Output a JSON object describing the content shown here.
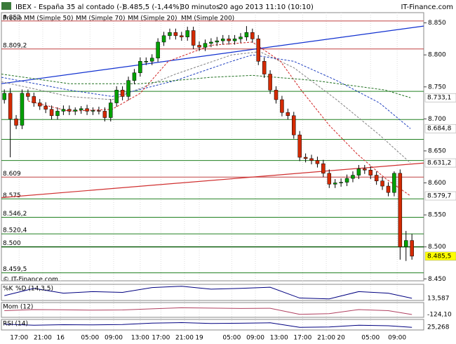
{
  "chart_data": {
    "type": "candlestick",
    "title": "IBEX - España 35 al contado (-)",
    "price_label": "8.485,5 (-1,44%)",
    "interval": "30 minutos",
    "date": "20 ago 2013 11:10 (10:10)",
    "brand": "IT-Finance.com",
    "footer": "© IT-Finance.com",
    "price_name": "Precio",
    "xlim": [
      0,
      143
    ],
    "ylim": [
      8.447,
      8.866
    ],
    "xticks": [
      {
        "value": 6,
        "label": "17:00"
      },
      {
        "value": 14,
        "label": "21:00"
      },
      {
        "value": 20,
        "label": "16"
      },
      {
        "value": 30,
        "label": "05:00"
      },
      {
        "value": 38,
        "label": "09:00"
      },
      {
        "value": 47,
        "label": "13:00"
      },
      {
        "value": 54,
        "label": "17:00"
      },
      {
        "value": 62,
        "label": "21:00"
      },
      {
        "value": 67,
        "label": "19"
      },
      {
        "value": 78,
        "label": "05:00"
      },
      {
        "value": 86,
        "label": "09:00"
      },
      {
        "value": 94,
        "label": "13:00"
      },
      {
        "value": 102,
        "label": "17:00"
      },
      {
        "value": 110,
        "label": "21:00"
      },
      {
        "value": 115,
        "label": "20"
      },
      {
        "value": 125,
        "label": "05:00"
      },
      {
        "value": 134,
        "label": "09:00"
      }
    ],
    "yticks": [
      {
        "value": 8.85,
        "label": "8.850"
      },
      {
        "value": 8.8,
        "label": "8.800"
      },
      {
        "value": 8.75,
        "label": "8.750"
      },
      {
        "value": 8.7,
        "label": "8.700"
      },
      {
        "value": 8.65,
        "label": "8.650"
      },
      {
        "value": 8.6,
        "label": "8.600"
      },
      {
        "value": 8.55,
        "label": "8.550"
      },
      {
        "value": 8.5,
        "label": "8.500"
      },
      {
        "value": 8.45,
        "label": "8.450"
      }
    ],
    "candles": {
      "up_color": "#00a000",
      "down_color": "#d42a00",
      "x": [
        1,
        3,
        5,
        7,
        9,
        11,
        13,
        15,
        17,
        19,
        21,
        23,
        25,
        27,
        29,
        31,
        33,
        35,
        37,
        39,
        41,
        43,
        45,
        47,
        49,
        51,
        53,
        55,
        57,
        59,
        61,
        63,
        65,
        67,
        69,
        71,
        73,
        75,
        77,
        79,
        81,
        83,
        85,
        87,
        89,
        91,
        93,
        95,
        97,
        99,
        101,
        103,
        105,
        107,
        109,
        111,
        113,
        115,
        117,
        119,
        121,
        123,
        125,
        127,
        129,
        131,
        133,
        135,
        137,
        139
      ],
      "open": [
        8.73,
        8.74,
        8.7,
        8.69,
        8.74,
        8.735,
        8.725,
        8.72,
        8.715,
        8.705,
        8.712,
        8.715,
        8.712,
        8.714,
        8.716,
        8.712,
        8.713,
        8.712,
        8.702,
        8.725,
        8.745,
        8.735,
        8.76,
        8.772,
        8.79,
        8.79,
        8.795,
        8.82,
        8.83,
        8.835,
        8.83,
        8.828,
        8.838,
        8.815,
        8.812,
        8.818,
        8.82,
        8.822,
        8.825,
        8.822,
        8.825,
        8.828,
        8.835,
        8.825,
        8.79,
        8.77,
        8.745,
        8.73,
        8.71,
        8.705,
        8.675,
        8.64,
        8.638,
        8.635,
        8.63,
        8.615,
        8.598,
        8.6,
        8.601,
        8.607,
        8.612,
        8.622,
        8.62,
        8.612,
        8.603,
        8.595,
        8.585,
        8.615,
        8.5,
        8.51
      ],
      "high": [
        8.746,
        8.748,
        8.706,
        8.746,
        8.746,
        8.741,
        8.731,
        8.726,
        8.721,
        8.718,
        8.721,
        8.721,
        8.718,
        8.72,
        8.722,
        8.718,
        8.719,
        8.718,
        8.731,
        8.751,
        8.751,
        8.766,
        8.778,
        8.796,
        8.796,
        8.801,
        8.826,
        8.836,
        8.841,
        8.841,
        8.836,
        8.844,
        8.844,
        8.821,
        8.824,
        8.826,
        8.828,
        8.831,
        8.831,
        8.831,
        8.834,
        8.845,
        8.841,
        8.831,
        8.796,
        8.776,
        8.751,
        8.736,
        8.716,
        8.711,
        8.681,
        8.646,
        8.644,
        8.641,
        8.636,
        8.621,
        8.606,
        8.607,
        8.613,
        8.618,
        8.628,
        8.628,
        8.626,
        8.618,
        8.609,
        8.601,
        8.618,
        8.621,
        8.525,
        8.52
      ],
      "low": [
        8.724,
        8.64,
        8.684,
        8.684,
        8.729,
        8.719,
        8.714,
        8.709,
        8.699,
        8.699,
        8.706,
        8.706,
        8.706,
        8.708,
        8.706,
        8.706,
        8.707,
        8.696,
        8.696,
        8.719,
        8.729,
        8.729,
        8.754,
        8.766,
        8.784,
        8.784,
        8.789,
        8.814,
        8.824,
        8.824,
        8.822,
        8.822,
        8.809,
        8.806,
        8.806,
        8.812,
        8.814,
        8.816,
        8.816,
        8.816,
        8.819,
        8.822,
        8.819,
        8.784,
        8.764,
        8.739,
        8.724,
        8.704,
        8.699,
        8.669,
        8.634,
        8.632,
        8.629,
        8.624,
        8.609,
        8.592,
        8.592,
        8.594,
        8.595,
        8.601,
        8.606,
        8.614,
        8.606,
        8.597,
        8.589,
        8.579,
        8.579,
        8.48,
        8.478,
        8.48
      ],
      "close": [
        8.74,
        8.7,
        8.69,
        8.74,
        8.735,
        8.725,
        8.72,
        8.715,
        8.705,
        8.712,
        8.715,
        8.712,
        8.714,
        8.716,
        8.712,
        8.713,
        8.712,
        8.702,
        8.725,
        8.745,
        8.735,
        8.76,
        8.772,
        8.79,
        8.79,
        8.795,
        8.82,
        8.83,
        8.835,
        8.83,
        8.828,
        8.838,
        8.815,
        8.812,
        8.818,
        8.82,
        8.822,
        8.825,
        8.822,
        8.825,
        8.828,
        8.835,
        8.825,
        8.79,
        8.77,
        8.745,
        8.73,
        8.71,
        8.705,
        8.675,
        8.64,
        8.638,
        8.635,
        8.63,
        8.615,
        8.598,
        8.6,
        8.601,
        8.607,
        8.612,
        8.622,
        8.62,
        8.612,
        8.603,
        8.595,
        8.585,
        8.615,
        8.5,
        8.51,
        8.4855
      ],
      "last_label": "8.485,5",
      "last_color": "#ffff00"
    },
    "series": [
      {
        "name": "MM (Simple 50)",
        "color": "#808080",
        "x": [
          0,
          23,
          37.5,
          59,
          78,
          87.5,
          99,
          113.5,
          128,
          138.5
        ],
        "values": [
          8.758,
          8.735,
          8.73,
          8.77,
          8.8,
          8.805,
          8.78,
          8.73,
          8.675,
          8.6312
        ],
        "value_labels": [
          null,
          null,
          null,
          null,
          null,
          null,
          null,
          null,
          null,
          "8.631,2"
        ]
      },
      {
        "name": "MM (Simple 70)",
        "color": "#2040c0",
        "x": [
          0,
          23,
          37.5,
          59,
          78,
          85,
          99,
          113.5,
          128,
          138.5
        ],
        "values": [
          8.765,
          8.745,
          8.735,
          8.76,
          8.79,
          8.8,
          8.79,
          8.76,
          8.725,
          8.6848
        ],
        "value_labels": [
          null,
          null,
          null,
          null,
          null,
          null,
          null,
          null,
          null,
          "8.684,8"
        ]
      },
      {
        "name": "MM (Simple 20)",
        "color": "#d02020",
        "x": [
          9,
          23,
          37.5,
          47,
          56.5,
          71,
          85,
          94.5,
          101.5,
          111,
          120.5,
          130,
          138.5
        ],
        "values": [
          8.728,
          8.712,
          8.715,
          8.74,
          8.79,
          8.815,
          8.82,
          8.79,
          8.745,
          8.69,
          8.645,
          8.607,
          8.5797
        ],
        "value_labels": [
          null,
          null,
          null,
          null,
          null,
          null,
          null,
          null,
          null,
          null,
          null,
          null,
          "8.579,7"
        ]
      },
      {
        "name": "MM (Simple 200)",
        "color": "#207020",
        "x": [
          0,
          23,
          47,
          71,
          85,
          106,
          130,
          138.5
        ],
        "values": [
          8.77,
          8.755,
          8.755,
          8.765,
          8.768,
          8.76,
          8.745,
          8.7331
        ],
        "value_labels": [
          null,
          null,
          null,
          null,
          null,
          null,
          null,
          "8.733,1"
        ]
      }
    ],
    "trendlines": [
      {
        "color": "#1030d0",
        "x": [
          0,
          143
        ],
        "values": [
          8.755,
          8.845
        ]
      },
      {
        "color": "#d03030",
        "x": [
          0,
          143
        ],
        "values": [
          8.577,
          8.631
        ]
      }
    ],
    "levels": [
      {
        "value": 8.853,
        "label": "8.853",
        "color": "#c04040"
      },
      {
        "value": 8.8092,
        "label": "8.809,2",
        "color": "#c04040"
      },
      {
        "value": 8.743,
        "color": "#208020"
      },
      {
        "value": 8.699,
        "color": "#208020"
      },
      {
        "value": 8.668,
        "color": "#208020"
      },
      {
        "value": 8.635,
        "color": "#208020"
      },
      {
        "value": 8.609,
        "label": "8.609",
        "color": "#c04040"
      },
      {
        "value": 8.575,
        "label": "8.575",
        "color": "#208020"
      },
      {
        "value": 8.5462,
        "label": "8.546,2",
        "color": "#208020"
      },
      {
        "value": 8.5204,
        "label": "8.520,4",
        "color": "#208020"
      },
      {
        "value": 8.5,
        "label": "8.500",
        "color": "#106010"
      },
      {
        "value": 8.4595,
        "label": "8.459,5",
        "color": "#208020"
      }
    ],
    "indicators": [
      {
        "name": "%K",
        "subname": "%D (14,3,5)",
        "color": "#000080",
        "ylim": [
          0,
          100
        ],
        "x": [
          1,
          11,
          21,
          31,
          41,
          51,
          61,
          71,
          81,
          91,
          101,
          111,
          121,
          131,
          139
        ],
        "values": [
          30,
          75,
          45,
          55,
          50,
          80,
          88,
          70,
          75,
          82,
          15,
          10,
          55,
          45,
          13.587
        ],
        "value_labels": [
          null,
          null,
          null,
          null,
          null,
          null,
          null,
          null,
          null,
          null,
          null,
          null,
          null,
          null,
          "13,587"
        ]
      },
      {
        "name": "Mom (12)",
        "color": "#b04060",
        "ylim": [
          -200,
          200
        ],
        "x": [
          1,
          11,
          21,
          31,
          41,
          51,
          61,
          71,
          81,
          91,
          101,
          111,
          121,
          131,
          139
        ],
        "values": [
          -20,
          10,
          5,
          -5,
          0,
          30,
          60,
          50,
          40,
          45,
          -120,
          -100,
          10,
          -20,
          -124.1
        ],
        "value_labels": [
          null,
          null,
          null,
          null,
          null,
          null,
          null,
          null,
          null,
          null,
          null,
          null,
          null,
          null,
          "-124,10"
        ]
      },
      {
        "name": "RSI (14)",
        "color": "#000080",
        "ylim": [
          0,
          100
        ],
        "x": [
          1,
          11,
          21,
          31,
          41,
          51,
          61,
          71,
          81,
          91,
          101,
          111,
          121,
          131,
          139
        ],
        "values": [
          55,
          45,
          50,
          48,
          52,
          65,
          70,
          62,
          64,
          68,
          25,
          28,
          45,
          40,
          25.268
        ],
        "value_labels": [
          null,
          null,
          null,
          null,
          null,
          null,
          null,
          null,
          null,
          null,
          null,
          null,
          null,
          null,
          "25,268"
        ]
      }
    ]
  }
}
